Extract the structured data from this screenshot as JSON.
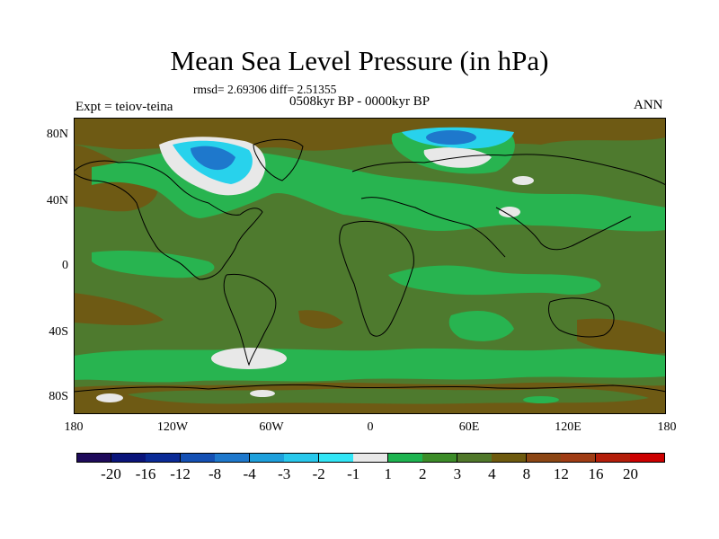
{
  "title": "Mean Sea Level Pressure (in hPa)",
  "stats": "rmsd= 2.69306 diff= 2.51355",
  "period": "0508kyr BP - 0000kyr BP",
  "experiment": "Expt = teiov-teina",
  "season": "ANN",
  "latitude_labels": [
    "80N",
    "40N",
    "0",
    "40S",
    "80S"
  ],
  "longitude_labels": [
    "180",
    "120W",
    "60W",
    "0",
    "60E",
    "120E",
    "180"
  ],
  "colorbar": {
    "labels": [
      "-20",
      "-16",
      "-12",
      "-8",
      "-4",
      "-3",
      "-2",
      "-1",
      "1",
      "2",
      "3",
      "4",
      "8",
      "12",
      "16",
      "20"
    ],
    "colors": [
      "#1e0a5a",
      "#0a147a",
      "#0a2a96",
      "#1450b4",
      "#1e78cc",
      "#1ea0dc",
      "#28c8ec",
      "#32e6f6",
      "#e8e8e8",
      "#1eb450",
      "#3c8c28",
      "#50782a",
      "#6e5a0e",
      "#8c4614",
      "#a03c14",
      "#b41e0a",
      "#cc0000"
    ]
  },
  "colors": {
    "olive": "#4e7a2e",
    "green": "#28b450",
    "brown": "#6e5a14",
    "light": "#e8e8e8",
    "lightblue": "#28d2ec",
    "coast": "#000000"
  }
}
